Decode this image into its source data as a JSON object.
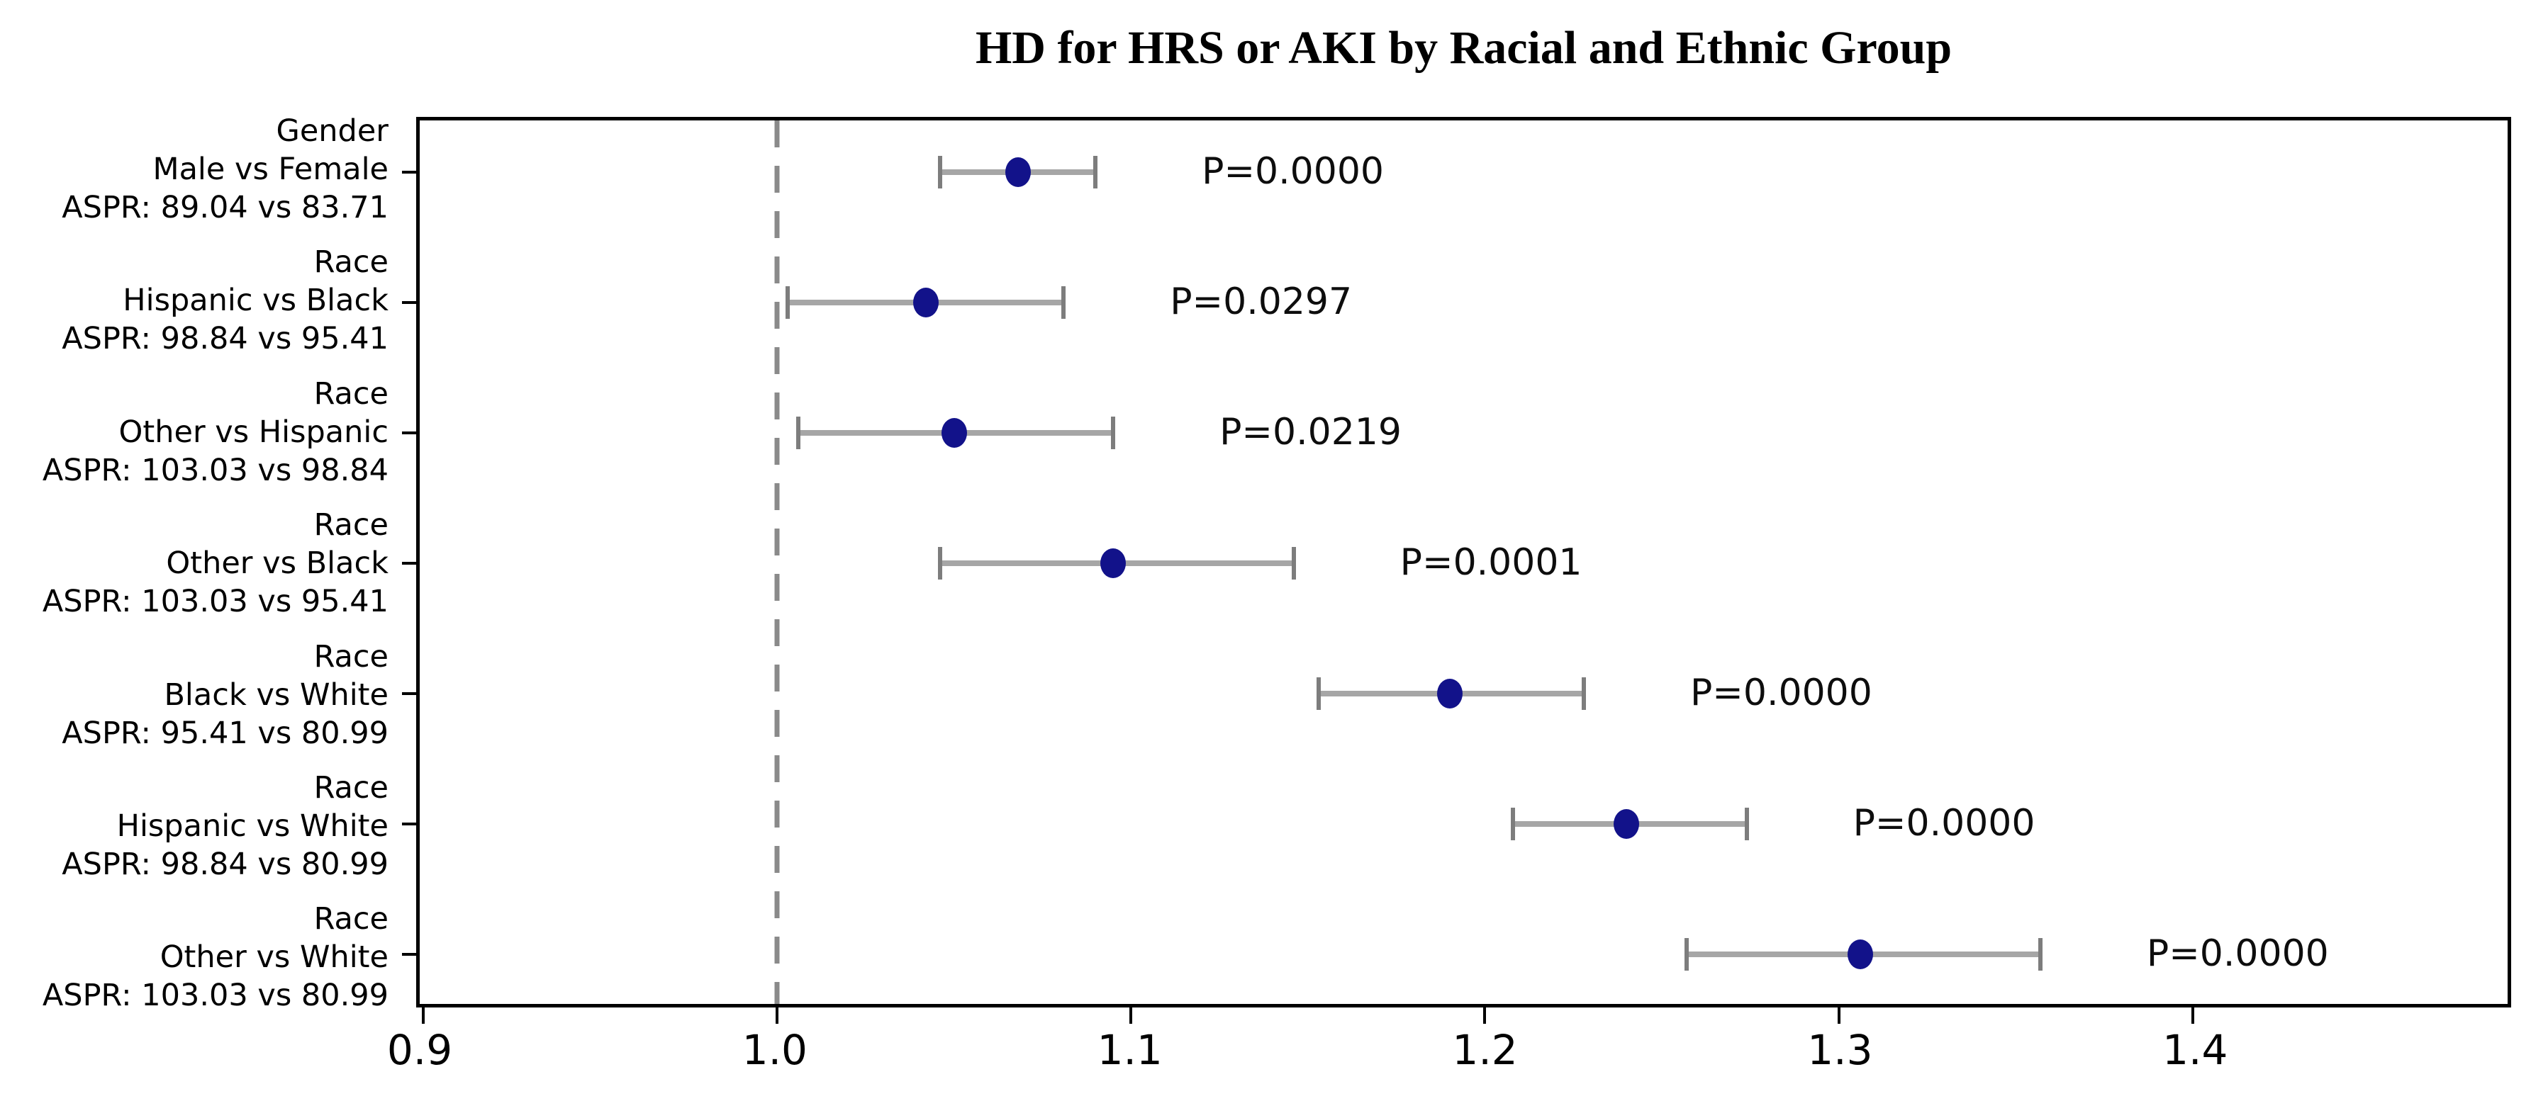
{
  "title": "HD for HRS or AKI by Racial and Ethnic Group",
  "colors": {
    "marker": "#12128a",
    "error_bar": "#a6a6a6",
    "error_cap": "#7d7d7d",
    "reference_line": "#8a8a8a",
    "axis": "#000000"
  },
  "chart_data": {
    "type": "scatter",
    "subtype": "forest-plot-with-error-bars",
    "title": "HD for HRS or AKI by Racial and Ethnic Group",
    "xlabel": "",
    "ylabel": "",
    "xlim": [
      0.899,
      1.489
    ],
    "x_ticks": [
      0.9,
      1.0,
      1.1,
      1.2,
      1.3,
      1.4
    ],
    "reference_line_x": 1.0,
    "grid": false,
    "legend": false,
    "rows": [
      {
        "group": "Gender",
        "comparison": "Male vs Female",
        "aspr": "ASPR: 89.04 vs 83.71",
        "estimate": 1.068,
        "ci_lower": 1.046,
        "ci_upper": 1.09,
        "p_label": "P=0.0000"
      },
      {
        "group": "Race",
        "comparison": "Hispanic vs Black",
        "aspr": "ASPR: 98.84 vs 95.41",
        "estimate": 1.042,
        "ci_lower": 1.003,
        "ci_upper": 1.081,
        "p_label": "P=0.0297"
      },
      {
        "group": "Race",
        "comparison": "Other vs Hispanic",
        "aspr": "ASPR: 103.03 vs 98.84",
        "estimate": 1.05,
        "ci_lower": 1.006,
        "ci_upper": 1.095,
        "p_label": "P=0.0219"
      },
      {
        "group": "Race",
        "comparison": "Other vs Black",
        "aspr": "ASPR: 103.03 vs 95.41",
        "estimate": 1.095,
        "ci_lower": 1.046,
        "ci_upper": 1.146,
        "p_label": "P=0.0001"
      },
      {
        "group": "Race",
        "comparison": "Black vs White",
        "aspr": "ASPR: 95.41 vs 80.99",
        "estimate": 1.19,
        "ci_lower": 1.153,
        "ci_upper": 1.228,
        "p_label": "P=0.0000"
      },
      {
        "group": "Race",
        "comparison": "Hispanic vs White",
        "aspr": "ASPR: 98.84 vs 80.99",
        "estimate": 1.24,
        "ci_lower": 1.208,
        "ci_upper": 1.274,
        "p_label": "P=0.0000"
      },
      {
        "group": "Race",
        "comparison": "Other vs White",
        "aspr": "ASPR: 103.03 vs 80.99",
        "estimate": 1.306,
        "ci_lower": 1.257,
        "ci_upper": 1.357,
        "p_label": "P=0.0000"
      }
    ]
  }
}
